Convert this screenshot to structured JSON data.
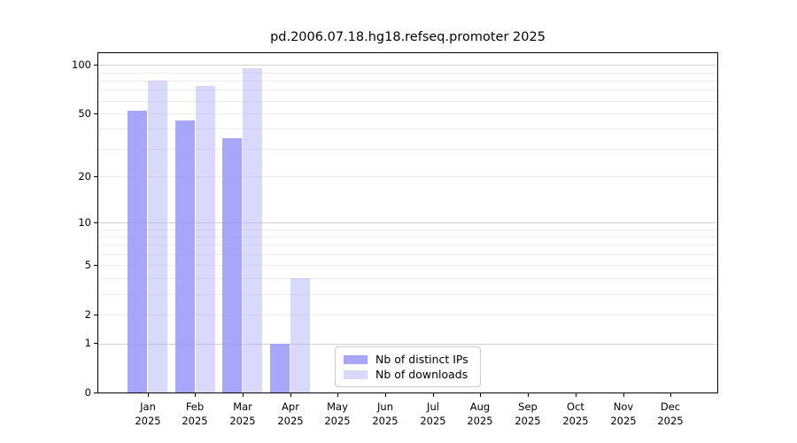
{
  "chart_data": {
    "type": "bar",
    "title": "pd.2006.07.18.hg18.refseq.promoter 2025",
    "categories": [
      "Jan",
      "Feb",
      "Mar",
      "Apr",
      "May",
      "Jun",
      "Jul",
      "Aug",
      "Sep",
      "Oct",
      "Nov",
      "Dec"
    ],
    "x_tick_second_line": "2025",
    "series": [
      {
        "name": "Nb of distinct IPs",
        "color": "rgba(150,150,250,0.85)",
        "values": [
          52,
          45,
          35,
          1,
          0,
          0,
          0,
          0,
          0,
          0,
          0,
          0
        ]
      },
      {
        "name": "Nb of downloads",
        "color": "rgba(170,170,250,0.45)",
        "values": [
          80,
          74,
          95,
          4,
          0,
          0,
          0,
          0,
          0,
          0,
          0,
          0
        ]
      }
    ],
    "y_scale": "log1p",
    "ylim": [
      0,
      118
    ],
    "y_ticks": [
      100,
      50,
      20,
      10,
      5,
      2,
      1,
      0
    ],
    "grid": true,
    "grid_major_values": [
      100,
      10,
      1
    ],
    "grid_minor_values": [
      90,
      80,
      70,
      60,
      50,
      40,
      30,
      20,
      9,
      8,
      7,
      6,
      5,
      4,
      3,
      2
    ],
    "legend_position": "lower-center",
    "colors": {
      "axis": "#000000",
      "grid_major": "#d2d2d2",
      "grid_minor": "#ececec",
      "legend_border": "#cccccc",
      "text": "#000000"
    }
  }
}
